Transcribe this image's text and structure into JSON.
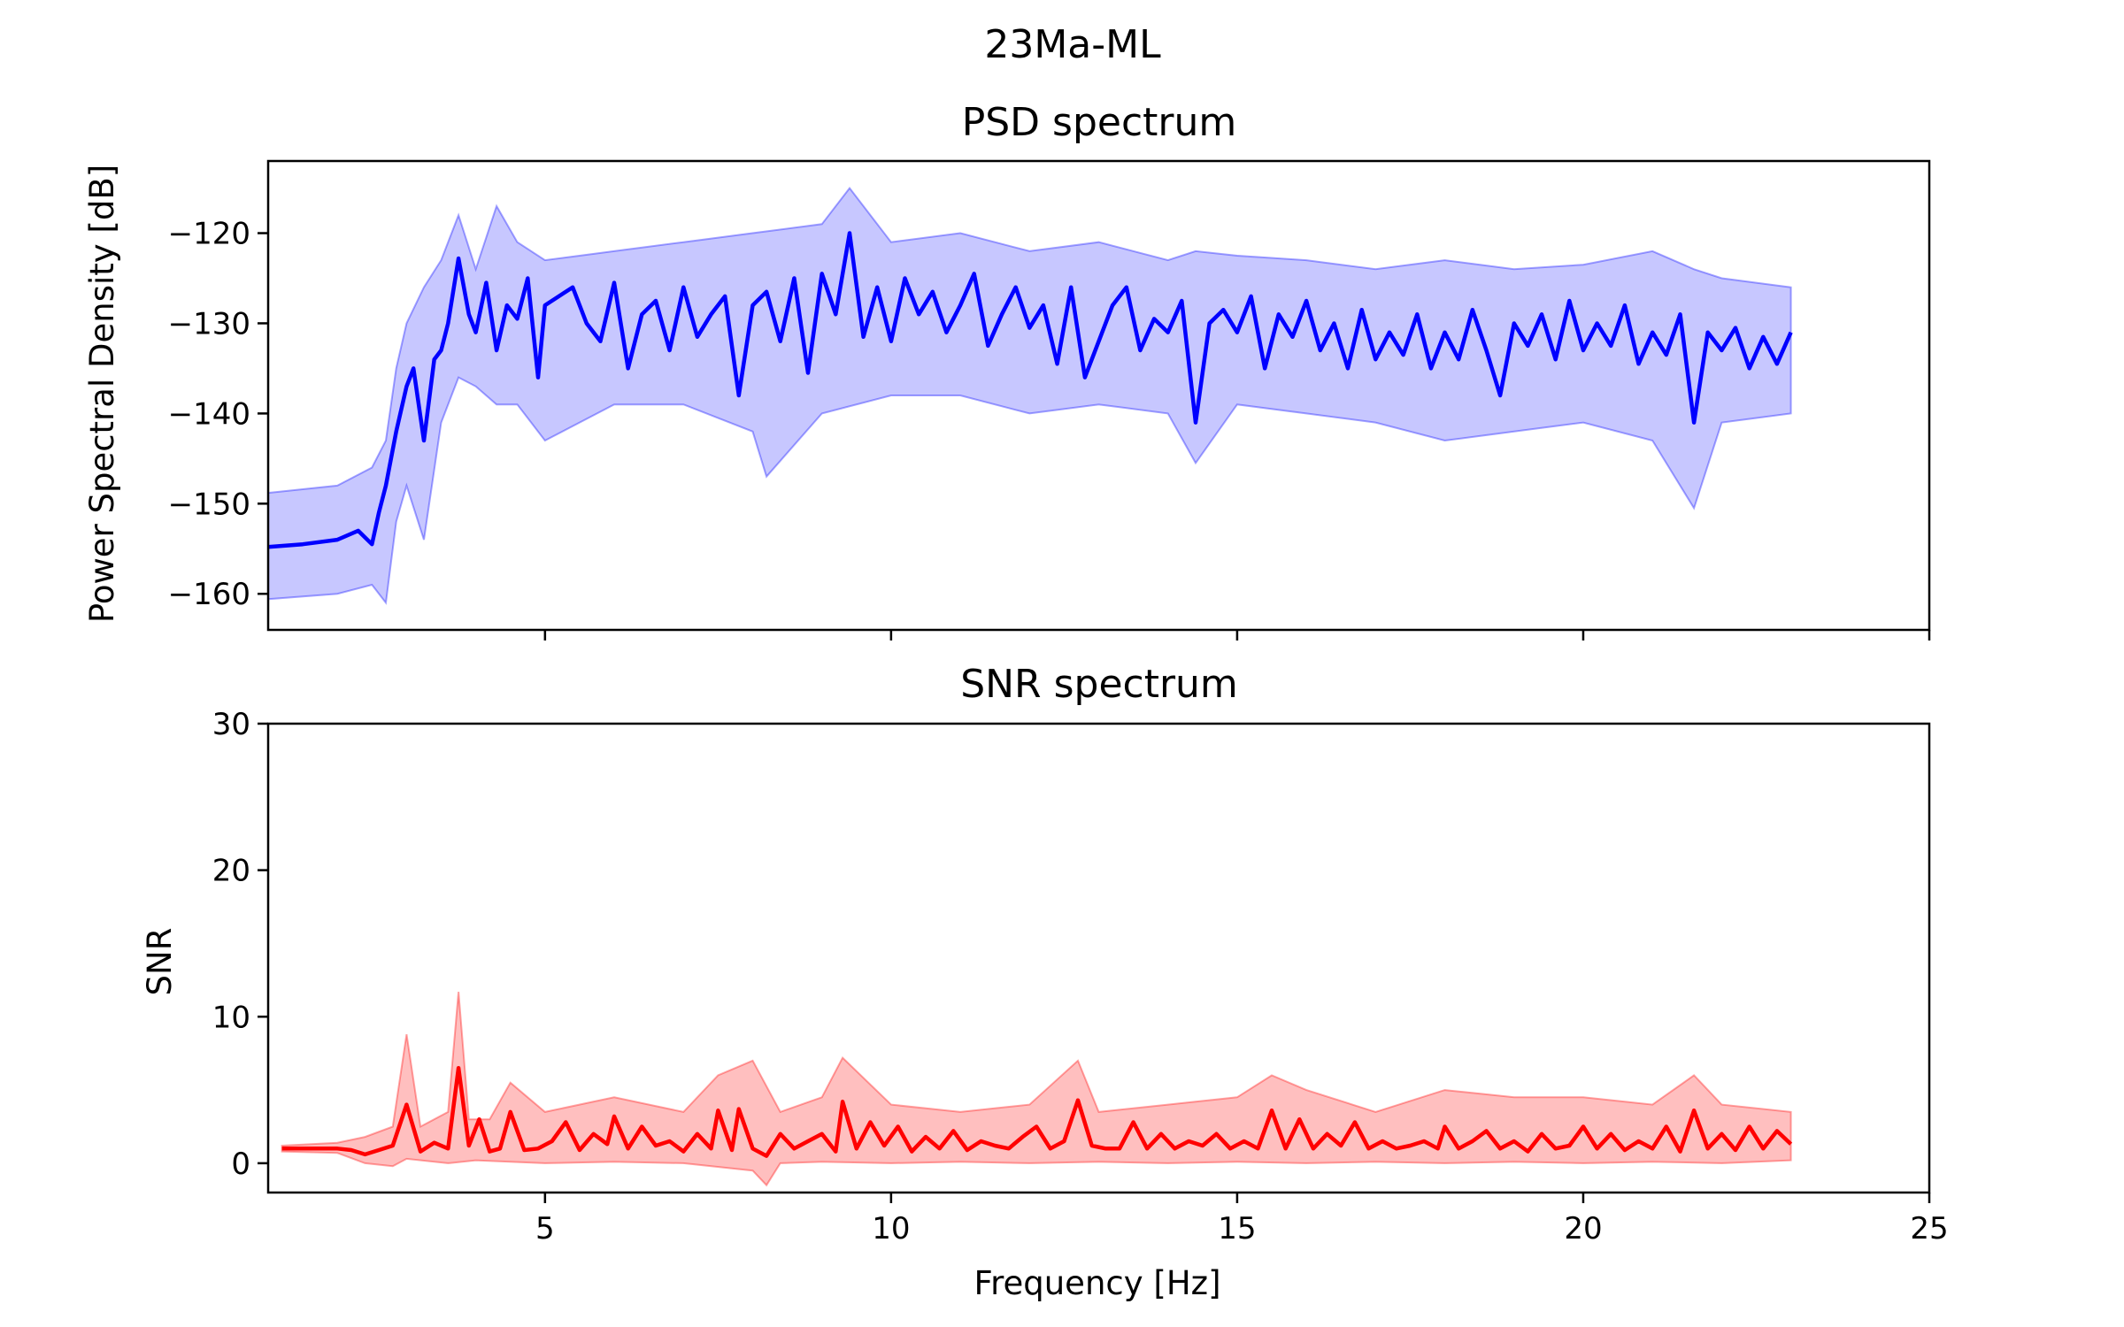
{
  "figure": {
    "suptitle": "23Ma-ML"
  },
  "chart_data": [
    {
      "type": "line",
      "title": "PSD spectrum",
      "xlabel": "",
      "ylabel": "Power Spectral Density [dB]",
      "xlim": [
        1.0,
        25.0
      ],
      "ylim": [
        -164.0,
        -112.0
      ],
      "xticks": [
        5,
        10,
        15,
        20,
        25
      ],
      "xticklabels": [
        "",
        "",
        "",
        "",
        ""
      ],
      "yticks": [
        -160,
        -150,
        -140,
        -130,
        -120
      ],
      "yticklabels": [
        "−160",
        "−150",
        "−140",
        "−130",
        "−120"
      ],
      "grid": false,
      "colors": {
        "line": "#0000ff",
        "band": "#0000ff",
        "band_opacity": 0.22
      },
      "series": [
        {
          "x": [
            1.0,
            1.5,
            2.0,
            2.3,
            2.5,
            2.6,
            2.7,
            2.85,
            3.0,
            3.1,
            3.25,
            3.4,
            3.5,
            3.6,
            3.75,
            3.9,
            4.0,
            4.15,
            4.3,
            4.45,
            4.6,
            4.75,
            4.9,
            5.0,
            5.2,
            5.4,
            5.6,
            5.8,
            6.0,
            6.2,
            6.4,
            6.6,
            6.8,
            7.0,
            7.2,
            7.4,
            7.6,
            7.8,
            8.0,
            8.2,
            8.4,
            8.6,
            8.8,
            9.0,
            9.2,
            9.4,
            9.6,
            9.8,
            10.0,
            10.2,
            10.4,
            10.6,
            10.8,
            11.0,
            11.2,
            11.4,
            11.6,
            11.8,
            12.0,
            12.2,
            12.4,
            12.6,
            12.8,
            13.0,
            13.2,
            13.4,
            13.6,
            13.8,
            14.0,
            14.2,
            14.4,
            14.6,
            14.8,
            15.0,
            15.2,
            15.4,
            15.6,
            15.8,
            16.0,
            16.2,
            16.4,
            16.6,
            16.8,
            17.0,
            17.2,
            17.4,
            17.6,
            17.8,
            18.0,
            18.2,
            18.4,
            18.6,
            18.8,
            19.0,
            19.2,
            19.4,
            19.6,
            19.8,
            20.0,
            20.2,
            20.4,
            20.6,
            20.8,
            21.0,
            21.2,
            21.4,
            21.6,
            21.8,
            22.0,
            22.2,
            22.4,
            22.6,
            22.8,
            23.0
          ],
          "y": [
            -154.8,
            -154.5,
            -154.0,
            -153.0,
            -154.5,
            -151.0,
            -148.0,
            -142.0,
            -137.0,
            -135.0,
            -143.0,
            -134.0,
            -133.0,
            -130.0,
            -122.8,
            -129.0,
            -131.0,
            -125.5,
            -133.0,
            -128.0,
            -129.5,
            -125.0,
            -136.0,
            -128.0,
            -127.0,
            -126.0,
            -130.0,
            -132.0,
            -125.5,
            -135.0,
            -129.0,
            -127.5,
            -133.0,
            -126.0,
            -131.5,
            -129.0,
            -127.0,
            -138.0,
            -128.0,
            -126.5,
            -132.0,
            -125.0,
            -135.5,
            -124.5,
            -129.0,
            -120.0,
            -131.5,
            -126.0,
            -132.0,
            -125.0,
            -129.0,
            -126.5,
            -131.0,
            -128.0,
            -124.5,
            -132.5,
            -129.0,
            -126.0,
            -130.5,
            -128.0,
            -134.5,
            -126.0,
            -136.0,
            -132.0,
            -128.0,
            -126.0,
            -133.0,
            -129.5,
            -131.0,
            -127.5,
            -141.0,
            -130.0,
            -128.5,
            -131.0,
            -127.0,
            -135.0,
            -129.0,
            -131.5,
            -127.5,
            -133.0,
            -130.0,
            -135.0,
            -128.5,
            -134.0,
            -131.0,
            -133.5,
            -129.0,
            -135.0,
            -131.0,
            -134.0,
            -128.5,
            -133.0,
            -138.0,
            -130.0,
            -132.5,
            -129.0,
            -134.0,
            -127.5,
            -133.0,
            -130.0,
            -132.5,
            -128.0,
            -134.5,
            -131.0,
            -133.5,
            -129.0,
            -141.0,
            -131.0,
            -133.0,
            -130.5,
            -135.0,
            -131.5,
            -134.5,
            -131.0
          ]
        },
        {
          "x": [
            1.0,
            2.0,
            2.5,
            2.7,
            2.85,
            3.0,
            3.25,
            3.5,
            3.75,
            4.0,
            4.3,
            4.6,
            5.0,
            6.0,
            7.0,
            8.0,
            9.0,
            9.4,
            10.0,
            11.0,
            12.0,
            13.0,
            14.0,
            14.4,
            15.0,
            16.0,
            17.0,
            18.0,
            19.0,
            20.0,
            21.0,
            21.6,
            22.0,
            23.0
          ],
          "y": [
            -148.8,
            -148.0,
            -146.0,
            -143.0,
            -135.0,
            -130.0,
            -126.0,
            -123.0,
            -118.0,
            -124.0,
            -117.0,
            -121.0,
            -123.0,
            -122.0,
            -121.0,
            -120.0,
            -119.0,
            -115.0,
            -121.0,
            -120.0,
            -122.0,
            -121.0,
            -123.0,
            -122.0,
            -122.5,
            -123.0,
            -124.0,
            -123.0,
            -124.0,
            -123.5,
            -122.0,
            -124.0,
            -125.0,
            -126.0
          ],
          "role": "upper"
        },
        {
          "x": [
            1.0,
            2.0,
            2.5,
            2.7,
            2.85,
            3.0,
            3.25,
            3.5,
            3.75,
            4.0,
            4.3,
            4.6,
            5.0,
            6.0,
            7.0,
            8.0,
            8.2,
            9.0,
            10.0,
            11.0,
            12.0,
            13.0,
            14.0,
            14.4,
            15.0,
            16.0,
            17.0,
            18.0,
            19.0,
            20.0,
            21.0,
            21.6,
            22.0,
            23.0
          ],
          "y": [
            -160.6,
            -160.0,
            -159.0,
            -161.0,
            -152.0,
            -148.0,
            -154.0,
            -141.0,
            -136.0,
            -137.0,
            -139.0,
            -139.0,
            -143.0,
            -139.0,
            -139.0,
            -142.0,
            -147.0,
            -140.0,
            -138.0,
            -138.0,
            -140.0,
            -139.0,
            -140.0,
            -145.5,
            -139.0,
            -140.0,
            -141.0,
            -143.0,
            -142.0,
            -141.0,
            -143.0,
            -150.5,
            -141.0,
            -140.0
          ],
          "role": "lower"
        }
      ]
    },
    {
      "type": "line",
      "title": "SNR spectrum",
      "xlabel": "Frequency [Hz]",
      "ylabel": "SNR",
      "xlim": [
        1.0,
        25.0
      ],
      "ylim": [
        -2.0,
        30.0
      ],
      "xticks": [
        5,
        10,
        15,
        20,
        25
      ],
      "xticklabels": [
        "5",
        "10",
        "15",
        "20",
        "25"
      ],
      "yticks": [
        0,
        10,
        20,
        30
      ],
      "yticklabels": [
        "0",
        "10",
        "20",
        "30"
      ],
      "grid": false,
      "colors": {
        "line": "#ff0000",
        "band": "#ff0000",
        "band_opacity": 0.25
      },
      "series": [
        {
          "x": [
            1.2,
            1.6,
            2.0,
            2.2,
            2.4,
            2.6,
            2.8,
            3.0,
            3.2,
            3.4,
            3.6,
            3.75,
            3.9,
            4.05,
            4.2,
            4.35,
            4.5,
            4.7,
            4.9,
            5.1,
            5.3,
            5.5,
            5.7,
            5.9,
            6.0,
            6.2,
            6.4,
            6.6,
            6.8,
            7.0,
            7.2,
            7.4,
            7.5,
            7.7,
            7.8,
            8.0,
            8.2,
            8.4,
            8.6,
            8.8,
            9.0,
            9.2,
            9.3,
            9.5,
            9.7,
            9.9,
            10.1,
            10.3,
            10.5,
            10.7,
            10.9,
            11.1,
            11.3,
            11.5,
            11.7,
            11.9,
            12.1,
            12.3,
            12.5,
            12.7,
            12.9,
            13.1,
            13.3,
            13.5,
            13.7,
            13.9,
            14.1,
            14.3,
            14.5,
            14.7,
            14.9,
            15.1,
            15.3,
            15.5,
            15.7,
            15.9,
            16.1,
            16.3,
            16.5,
            16.7,
            16.9,
            17.1,
            17.3,
            17.5,
            17.7,
            17.9,
            18.0,
            18.2,
            18.4,
            18.6,
            18.8,
            19.0,
            19.2,
            19.4,
            19.6,
            19.8,
            20.0,
            20.2,
            20.4,
            20.6,
            20.8,
            21.0,
            21.2,
            21.4,
            21.6,
            21.8,
            22.0,
            22.2,
            22.4,
            22.6,
            22.8,
            23.0
          ],
          "y": [
            1.0,
            1.0,
            1.0,
            0.9,
            0.6,
            0.9,
            1.2,
            4.0,
            0.8,
            1.4,
            1.0,
            6.5,
            1.2,
            3.0,
            0.8,
            1.0,
            3.5,
            0.9,
            1.0,
            1.5,
            2.8,
            0.9,
            2.0,
            1.3,
            3.2,
            1.0,
            2.5,
            1.2,
            1.5,
            0.8,
            2.0,
            1.0,
            3.6,
            0.9,
            3.7,
            1.0,
            0.5,
            2.0,
            1.0,
            1.5,
            2.0,
            0.8,
            4.2,
            1.0,
            2.8,
            1.2,
            2.5,
            0.8,
            1.8,
            1.0,
            2.2,
            0.9,
            1.5,
            1.2,
            1.0,
            1.8,
            2.5,
            1.0,
            1.5,
            4.3,
            1.2,
            1.0,
            1.0,
            2.8,
            1.0,
            2.0,
            1.0,
            1.5,
            1.2,
            2.0,
            1.0,
            1.5,
            1.0,
            3.6,
            1.0,
            3.0,
            1.0,
            2.0,
            1.2,
            2.8,
            1.0,
            1.5,
            1.0,
            1.2,
            1.5,
            1.0,
            2.5,
            1.0,
            1.5,
            2.2,
            1.0,
            1.5,
            0.8,
            2.0,
            1.0,
            1.2,
            2.5,
            1.0,
            2.0,
            0.9,
            1.5,
            1.0,
            2.5,
            0.8,
            3.6,
            1.0,
            2.0,
            0.9,
            2.5,
            1.0,
            2.2,
            1.3
          ]
        },
        {
          "x": [
            1.2,
            2.0,
            2.4,
            2.8,
            3.0,
            3.2,
            3.6,
            3.75,
            3.9,
            4.2,
            4.5,
            5.0,
            6.0,
            7.0,
            7.5,
            8.0,
            8.4,
            9.0,
            9.3,
            10.0,
            11.0,
            12.0,
            12.7,
            13.0,
            14.0,
            15.0,
            15.5,
            16.0,
            17.0,
            18.0,
            19.0,
            20.0,
            21.0,
            21.6,
            22.0,
            23.0
          ],
          "y": [
            1.2,
            1.4,
            1.8,
            2.5,
            8.8,
            2.5,
            3.5,
            11.7,
            3.0,
            3.0,
            5.5,
            3.5,
            4.5,
            3.5,
            6.0,
            7.0,
            3.5,
            4.5,
            7.2,
            4.0,
            3.5,
            4.0,
            7.0,
            3.5,
            4.0,
            4.5,
            6.0,
            5.0,
            3.5,
            5.0,
            4.5,
            4.5,
            4.0,
            6.0,
            4.0,
            3.5
          ],
          "role": "upper"
        },
        {
          "x": [
            1.2,
            2.0,
            2.4,
            2.8,
            3.0,
            3.6,
            4.0,
            5.0,
            6.0,
            7.0,
            8.0,
            8.2,
            8.4,
            9.0,
            10.0,
            11.0,
            12.0,
            13.0,
            14.0,
            15.0,
            16.0,
            17.0,
            18.0,
            19.0,
            20.0,
            21.0,
            22.0,
            23.0
          ],
          "y": [
            0.8,
            0.7,
            0.0,
            -0.2,
            0.3,
            0.0,
            0.2,
            0.0,
            0.1,
            0.0,
            -0.5,
            -1.5,
            0.0,
            0.1,
            0.0,
            0.1,
            0.0,
            0.1,
            0.0,
            0.1,
            0.0,
            0.1,
            0.0,
            0.1,
            0.0,
            0.1,
            0.0,
            0.2
          ],
          "role": "lower"
        }
      ]
    }
  ]
}
